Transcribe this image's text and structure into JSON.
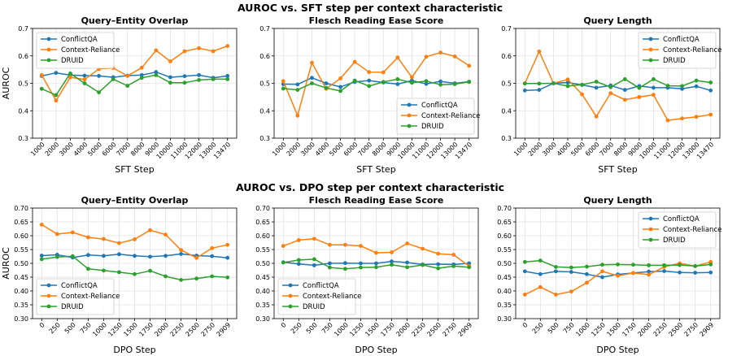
{
  "figure": {
    "row_titles": [
      "AUROC vs. SFT step per context characteristic",
      "AUROC vs. DPO step per context characteristic"
    ]
  },
  "colors": {
    "ConflictQA": "#1f77b4",
    "Context-Reliance": "#ff7f0e",
    "DRUID": "#2ca02c"
  },
  "chart_data": [
    {
      "type": "line",
      "title": "Query–Entity Overlap",
      "xlabel": "SFT Step",
      "ylabel": "AUROC",
      "x": [
        "1000",
        "2000",
        "3000",
        "4000",
        "5000",
        "6000",
        "7000",
        "8000",
        "9000",
        "10000",
        "11000",
        "12000",
        "13000",
        "13470"
      ],
      "ylim": [
        0.3,
        0.7
      ],
      "yticks": [
        "0.3",
        "0.4",
        "0.5",
        "0.6",
        "0.7"
      ],
      "grid": true,
      "legend": "upper-left",
      "series": [
        {
          "name": "ConflictQA",
          "values": [
            0.527,
            0.538,
            0.53,
            0.528,
            0.527,
            0.522,
            0.528,
            0.53,
            0.541,
            0.522,
            0.526,
            0.53,
            0.52,
            0.527
          ]
        },
        {
          "name": "Context-Reliance",
          "values": [
            0.53,
            0.437,
            0.522,
            0.514,
            0.552,
            0.556,
            0.527,
            0.557,
            0.62,
            0.58,
            0.617,
            0.628,
            0.617,
            0.636
          ]
        },
        {
          "name": "DRUID",
          "values": [
            0.48,
            0.457,
            0.536,
            0.5,
            0.467,
            0.515,
            0.491,
            0.52,
            0.53,
            0.502,
            0.502,
            0.512,
            0.515,
            0.515
          ]
        }
      ]
    },
    {
      "type": "line",
      "title": "Flesch Reading Ease Score",
      "xlabel": "SFT Step",
      "ylabel": "",
      "x": [
        "1000",
        "2000",
        "3000",
        "4000",
        "5000",
        "6000",
        "7000",
        "8000",
        "9000",
        "10000",
        "11000",
        "12000",
        "13000",
        "13470"
      ],
      "ylim": [
        0.3,
        0.7
      ],
      "yticks": [
        "0.3",
        "0.4",
        "0.5",
        "0.6",
        "0.7"
      ],
      "grid": true,
      "legend": "lower-right",
      "series": [
        {
          "name": "ConflictQA",
          "values": [
            0.497,
            0.496,
            0.52,
            0.5,
            0.487,
            0.505,
            0.51,
            0.503,
            0.497,
            0.51,
            0.498,
            0.507,
            0.5,
            0.506
          ]
        },
        {
          "name": "Context-Reliance",
          "values": [
            0.508,
            0.382,
            0.575,
            0.48,
            0.518,
            0.578,
            0.541,
            0.54,
            0.594,
            0.522,
            0.597,
            0.612,
            0.598,
            0.564
          ]
        },
        {
          "name": "DRUID",
          "values": [
            0.481,
            0.476,
            0.5,
            0.483,
            0.472,
            0.51,
            0.49,
            0.505,
            0.515,
            0.502,
            0.508,
            0.495,
            0.497,
            0.505
          ]
        }
      ]
    },
    {
      "type": "line",
      "title": "Query Length",
      "xlabel": "SFT Step",
      "ylabel": "",
      "x": [
        "1000",
        "2000",
        "3000",
        "4000",
        "5000",
        "6000",
        "7000",
        "8000",
        "9000",
        "10000",
        "11000",
        "12000",
        "13000",
        "13470"
      ],
      "ylim": [
        0.3,
        0.7
      ],
      "yticks": [
        "0.3",
        "0.4",
        "0.5",
        "0.6",
        "0.7"
      ],
      "grid": true,
      "legend": "upper-right",
      "series": [
        {
          "name": "ConflictQA",
          "values": [
            0.474,
            0.476,
            0.5,
            0.503,
            0.494,
            0.484,
            0.492,
            0.476,
            0.49,
            0.484,
            0.484,
            0.48,
            0.489,
            0.474
          ]
        },
        {
          "name": "Context-Reliance",
          "values": [
            0.5,
            0.616,
            0.5,
            0.514,
            0.46,
            0.379,
            0.464,
            0.44,
            0.45,
            0.458,
            0.365,
            0.372,
            0.378,
            0.386
          ]
        },
        {
          "name": "DRUID",
          "values": [
            0.499,
            0.499,
            0.5,
            0.49,
            0.495,
            0.506,
            0.486,
            0.515,
            0.483,
            0.515,
            0.491,
            0.49,
            0.51,
            0.503
          ]
        }
      ]
    },
    {
      "type": "line",
      "title": "Query–Entity Overlap",
      "xlabel": "DPO Step",
      "ylabel": "AUROC",
      "x": [
        "0",
        "250",
        "500",
        "750",
        "1000",
        "1250",
        "1500",
        "1750",
        "2000",
        "2250",
        "2500",
        "2750",
        "2909"
      ],
      "ylim": [
        0.3,
        0.7
      ],
      "yticks": [
        "0.30",
        "0.35",
        "0.40",
        "0.45",
        "0.50",
        "0.55",
        "0.60",
        "0.65",
        "0.70"
      ],
      "grid": true,
      "legend": "lower-left",
      "series": [
        {
          "name": "ConflictQA",
          "values": [
            0.528,
            0.531,
            0.521,
            0.53,
            0.527,
            0.533,
            0.527,
            0.524,
            0.527,
            0.534,
            0.528,
            0.526,
            0.52
          ]
        },
        {
          "name": "Context-Reliance",
          "values": [
            0.64,
            0.606,
            0.612,
            0.594,
            0.588,
            0.573,
            0.587,
            0.62,
            0.604,
            0.548,
            0.52,
            0.555,
            0.567
          ]
        },
        {
          "name": "DRUID",
          "values": [
            0.515,
            0.523,
            0.526,
            0.48,
            0.474,
            0.468,
            0.461,
            0.473,
            0.453,
            0.44,
            0.445,
            0.453,
            0.449
          ]
        }
      ]
    },
    {
      "type": "line",
      "title": "Flesch Reading Ease Score",
      "xlabel": "DPO Step",
      "ylabel": "",
      "x": [
        "0",
        "250",
        "500",
        "750",
        "1000",
        "1250",
        "1500",
        "1750",
        "2000",
        "2250",
        "2500",
        "2750",
        "2909"
      ],
      "ylim": [
        0.3,
        0.7
      ],
      "yticks": [
        "0.30",
        "0.35",
        "0.40",
        "0.45",
        "0.50",
        "0.55",
        "0.60",
        "0.65",
        "0.70"
      ],
      "grid": true,
      "legend": "lower-left",
      "series": [
        {
          "name": "ConflictQA",
          "values": [
            0.504,
            0.498,
            0.493,
            0.5,
            0.501,
            0.5,
            0.5,
            0.507,
            0.503,
            0.496,
            0.497,
            0.496,
            0.5
          ]
        },
        {
          "name": "Context-Reliance",
          "values": [
            0.563,
            0.584,
            0.589,
            0.567,
            0.567,
            0.563,
            0.538,
            0.54,
            0.572,
            0.553,
            0.535,
            0.531,
            0.49
          ]
        },
        {
          "name": "DRUID",
          "values": [
            0.503,
            0.512,
            0.515,
            0.485,
            0.48,
            0.485,
            0.486,
            0.495,
            0.486,
            0.494,
            0.482,
            0.49,
            0.486
          ]
        }
      ]
    },
    {
      "type": "line",
      "title": "Query Length",
      "xlabel": "DPO Step",
      "ylabel": "",
      "x": [
        "0",
        "250",
        "500",
        "750",
        "1000",
        "1250",
        "1500",
        "1750",
        "2000",
        "2250",
        "2500",
        "2750",
        "2909"
      ],
      "ylim": [
        0.3,
        0.7
      ],
      "yticks": [
        "0.30",
        "0.35",
        "0.40",
        "0.45",
        "0.50",
        "0.55",
        "0.60",
        "0.65",
        "0.70"
      ],
      "grid": true,
      "legend": "upper-right",
      "series": [
        {
          "name": "ConflictQA",
          "values": [
            0.471,
            0.461,
            0.471,
            0.469,
            0.461,
            0.45,
            0.46,
            0.465,
            0.47,
            0.472,
            0.467,
            0.466,
            0.467
          ]
        },
        {
          "name": "Context-Reliance",
          "values": [
            0.387,
            0.414,
            0.387,
            0.398,
            0.43,
            0.471,
            0.455,
            0.465,
            0.459,
            0.487,
            0.5,
            0.49,
            0.505
          ]
        },
        {
          "name": "DRUID",
          "values": [
            0.505,
            0.51,
            0.487,
            0.485,
            0.488,
            0.495,
            0.496,
            0.495,
            0.493,
            0.493,
            0.494,
            0.49,
            0.496
          ]
        }
      ]
    }
  ]
}
